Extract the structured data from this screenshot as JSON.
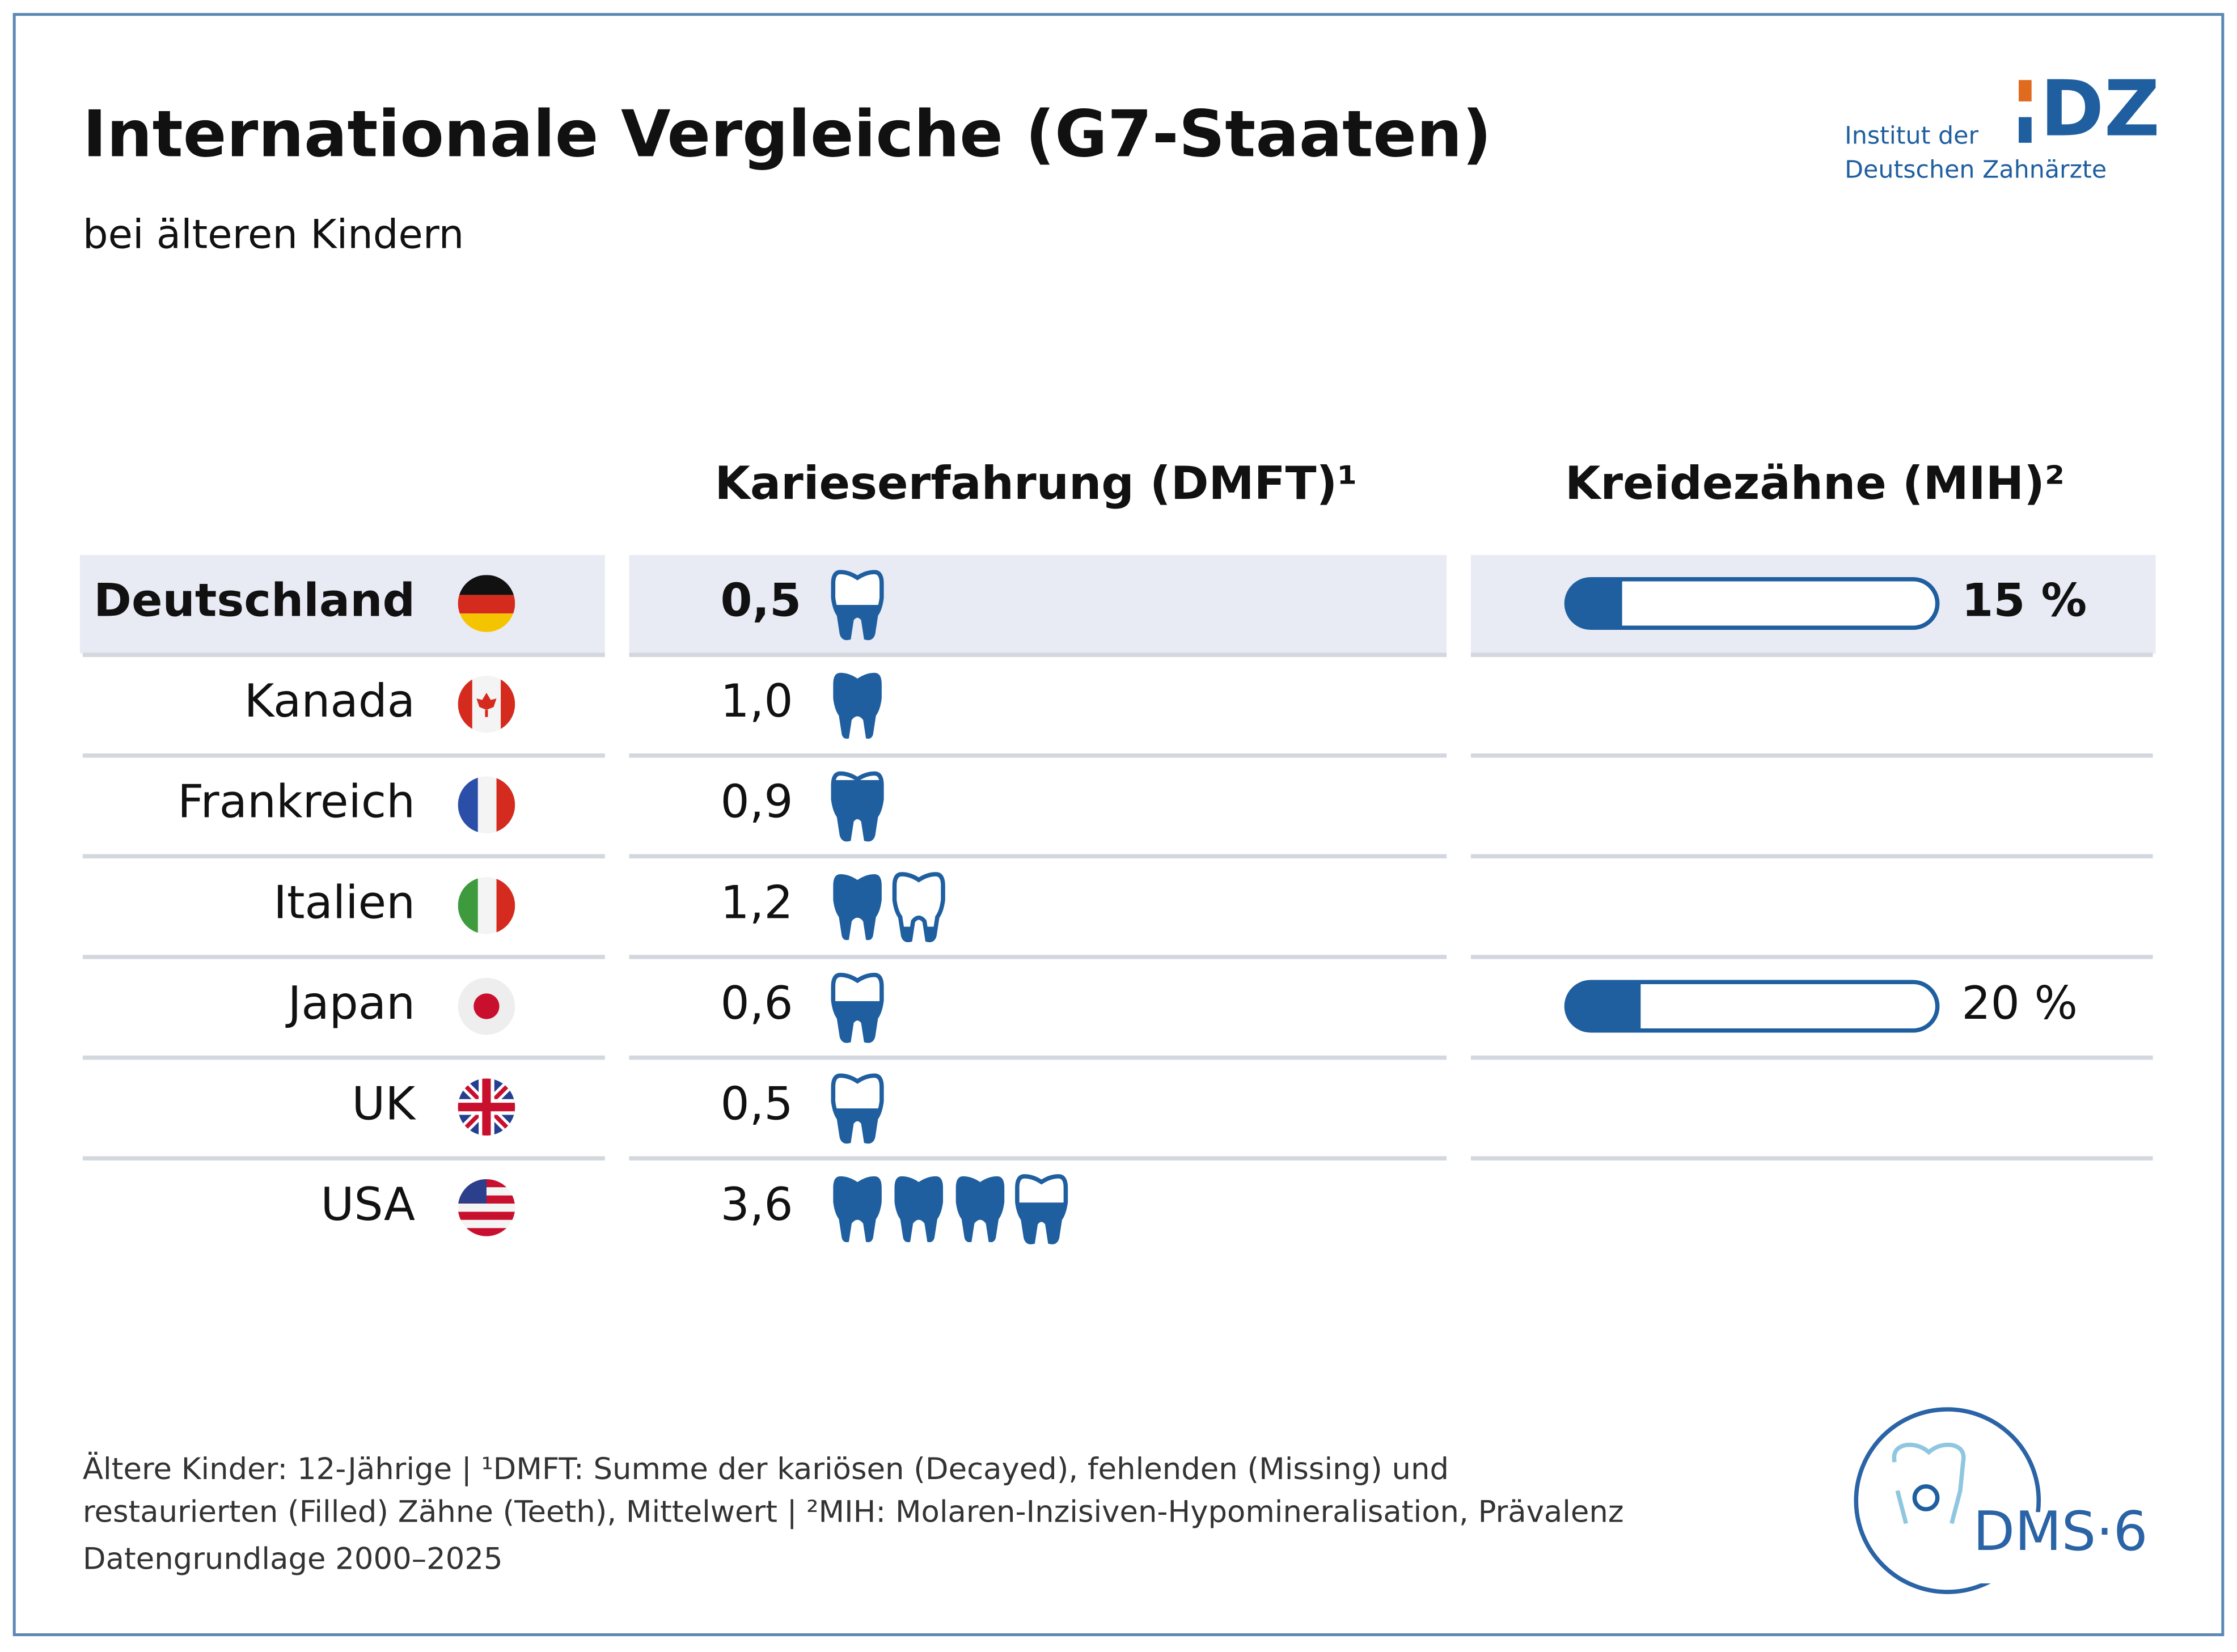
{
  "header": {
    "title": "Internationale Vergleiche (G7-Staaten)",
    "subtitle": "bei älteren Kindern"
  },
  "logo": {
    "line1": "Institut der",
    "line2": "Deutschen Zahnärzte",
    "mark": "DZ",
    "study": "DMS·6"
  },
  "chart_data": {
    "type": "pictograph",
    "categories": [
      "Deutschland",
      "Kanada",
      "Frankreich",
      "Italien",
      "Japan",
      "UK",
      "USA"
    ],
    "highlight": 0,
    "series": [
      {
        "name": "Karieserfahrung (DMFT)¹",
        "color": "#1f5fa0",
        "values": [
          0.5,
          1.0,
          0.9,
          1.2,
          0.6,
          0.5,
          3.6
        ],
        "value_labels": [
          "0,5",
          "1,0",
          "0,9",
          "1,2",
          "0,6",
          "0,5",
          "3,6"
        ]
      },
      {
        "name": "Kreidezähne (MIH)²",
        "color": "#1f5fa0",
        "values": [
          15,
          null,
          null,
          null,
          20,
          null,
          null
        ],
        "value_labels": [
          "15 %",
          null,
          null,
          null,
          "20 %",
          null,
          null
        ],
        "xlim": [
          0,
          100
        ]
      }
    ]
  },
  "footnotes": [
    "Ältere Kinder: 12-Jährige | ¹DMFT: Summe der kariösen (Decayed), fehlenden (Missing) und",
    "restaurierten (Filled) Zähne (Teeth), Mittelwert | ²MIH: Molaren-Inzisiven-Hypomineralisation, Prävalenz",
    "Datengrundlage 2000–2025"
  ]
}
